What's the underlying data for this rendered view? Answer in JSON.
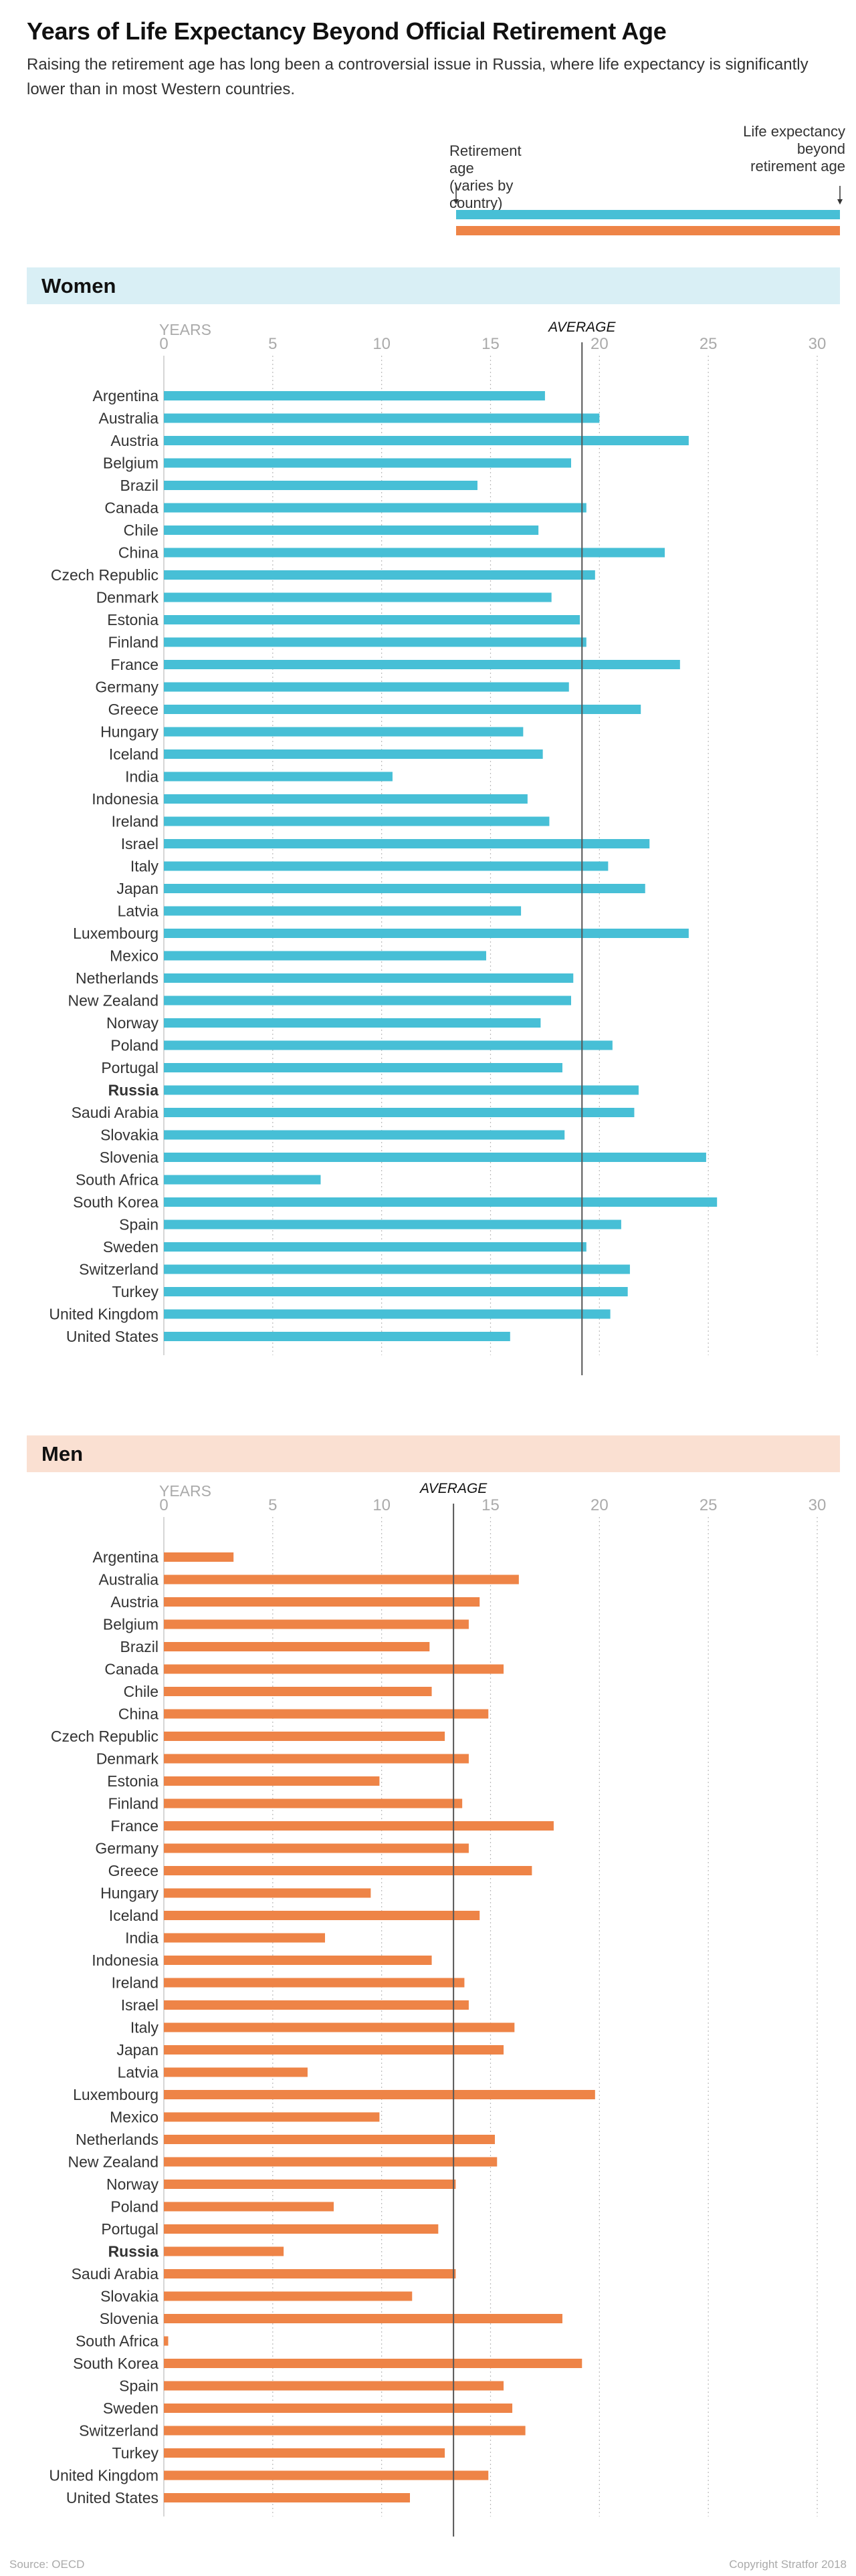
{
  "title": "Years of Life Expectancy Beyond Official Retirement Age",
  "subtitle": "Raising the retirement age has long been a controversial issue in Russia, where life expectancy is significantly lower than in most Western countries.",
  "legend": {
    "left_label": "Retirement age (varies by country)",
    "right_label": "Life expectancy beyond retirement age",
    "colors": [
      "#47bfd6",
      "#ee8447"
    ]
  },
  "source": "Source: OECD",
  "copyright": "Copyright Stratfor 2018",
  "chart_data": [
    {
      "type": "bar",
      "section": "Women",
      "color": "#47bfd6",
      "band_color": "#d9eff5",
      "unit_label": "YEARS",
      "average_label": "AVERAGE",
      "average": 19.2,
      "xlim": [
        0,
        30
      ],
      "ticks": [
        0,
        5,
        10,
        15,
        20,
        25,
        30
      ],
      "highlight": "Russia",
      "categories": [
        "Argentina",
        "Australia",
        "Austria",
        "Belgium",
        "Brazil",
        "Canada",
        "Chile",
        "China",
        "Czech Republic",
        "Denmark",
        "Estonia",
        "Finland",
        "France",
        "Germany",
        "Greece",
        "Hungary",
        "Iceland",
        "India",
        "Indonesia",
        "Ireland",
        "Israel",
        "Italy",
        "Japan",
        "Latvia",
        "Luxembourg",
        "Mexico",
        "Netherlands",
        "New Zealand",
        "Norway",
        "Poland",
        "Portugal",
        "Russia",
        "Saudi Arabia",
        "Slovakia",
        "Slovenia",
        "South Africa",
        "South Korea",
        "Spain",
        "Sweden",
        "Switzerland",
        "Turkey",
        "United Kingdom",
        "United States"
      ],
      "values": [
        17.5,
        20.0,
        24.1,
        18.7,
        14.4,
        19.4,
        17.2,
        23.0,
        19.8,
        17.8,
        19.1,
        19.4,
        23.7,
        18.6,
        21.9,
        16.5,
        17.4,
        10.5,
        16.7,
        17.7,
        22.3,
        20.4,
        22.1,
        16.4,
        24.1,
        14.8,
        18.8,
        18.7,
        17.3,
        20.6,
        18.3,
        21.8,
        21.6,
        18.4,
        24.9,
        7.2,
        25.4,
        21.0,
        19.4,
        21.4,
        21.3,
        20.5,
        15.9
      ]
    },
    {
      "type": "bar",
      "section": "Men",
      "color": "#ee8447",
      "band_color": "#fae0d2",
      "unit_label": "YEARS",
      "average_label": "AVERAGE",
      "average": 13.3,
      "xlim": [
        0,
        30
      ],
      "ticks": [
        0,
        5,
        10,
        15,
        20,
        25,
        30
      ],
      "highlight": "Russia",
      "categories": [
        "Argentina",
        "Australia",
        "Austria",
        "Belgium",
        "Brazil",
        "Canada",
        "Chile",
        "China",
        "Czech Republic",
        "Denmark",
        "Estonia",
        "Finland",
        "France",
        "Germany",
        "Greece",
        "Hungary",
        "Iceland",
        "India",
        "Indonesia",
        "Ireland",
        "Israel",
        "Italy",
        "Japan",
        "Latvia",
        "Luxembourg",
        "Mexico",
        "Netherlands",
        "New Zealand",
        "Norway",
        "Poland",
        "Portugal",
        "Russia",
        "Saudi Arabia",
        "Slovakia",
        "Slovenia",
        "South Africa",
        "South Korea",
        "Spain",
        "Sweden",
        "Switzerland",
        "Turkey",
        "United Kingdom",
        "United States"
      ],
      "values": [
        3.2,
        16.3,
        14.5,
        14.0,
        12.2,
        15.6,
        12.3,
        14.9,
        12.9,
        14.0,
        9.9,
        13.7,
        17.9,
        14.0,
        16.9,
        9.5,
        14.5,
        7.4,
        12.3,
        13.8,
        14.0,
        16.1,
        15.6,
        6.6,
        19.8,
        9.9,
        15.2,
        15.3,
        13.4,
        7.8,
        12.6,
        5.5,
        13.4,
        11.4,
        18.3,
        0.2,
        19.2,
        15.6,
        16.0,
        16.6,
        12.9,
        14.9,
        11.3
      ]
    }
  ]
}
